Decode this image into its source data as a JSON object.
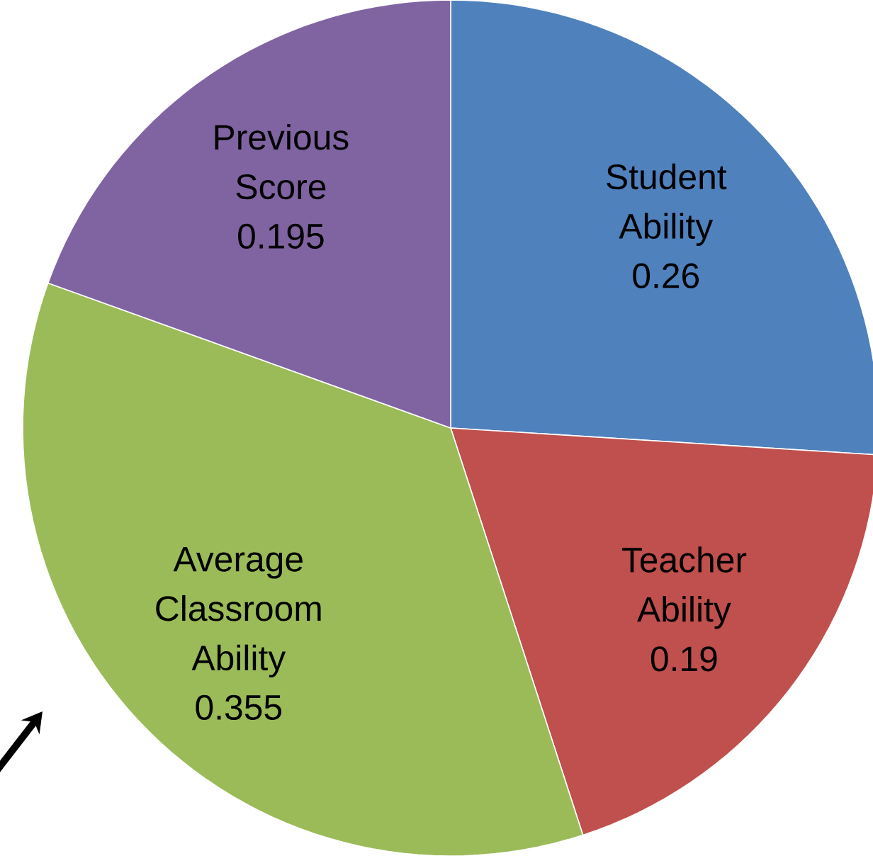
{
  "chart_data": {
    "type": "pie",
    "categories": [
      "Student Ability",
      "Teacher Ability",
      "Average Classroom Ability",
      "Previous Score"
    ],
    "values": [
      0.26,
      0.19,
      0.355,
      0.195
    ],
    "value_labels": [
      "0.26",
      "0.19",
      "0.355",
      "0.195"
    ],
    "colors": [
      "#4f81bd",
      "#c0504d",
      "#9bbb59",
      "#8064a2"
    ]
  }
}
